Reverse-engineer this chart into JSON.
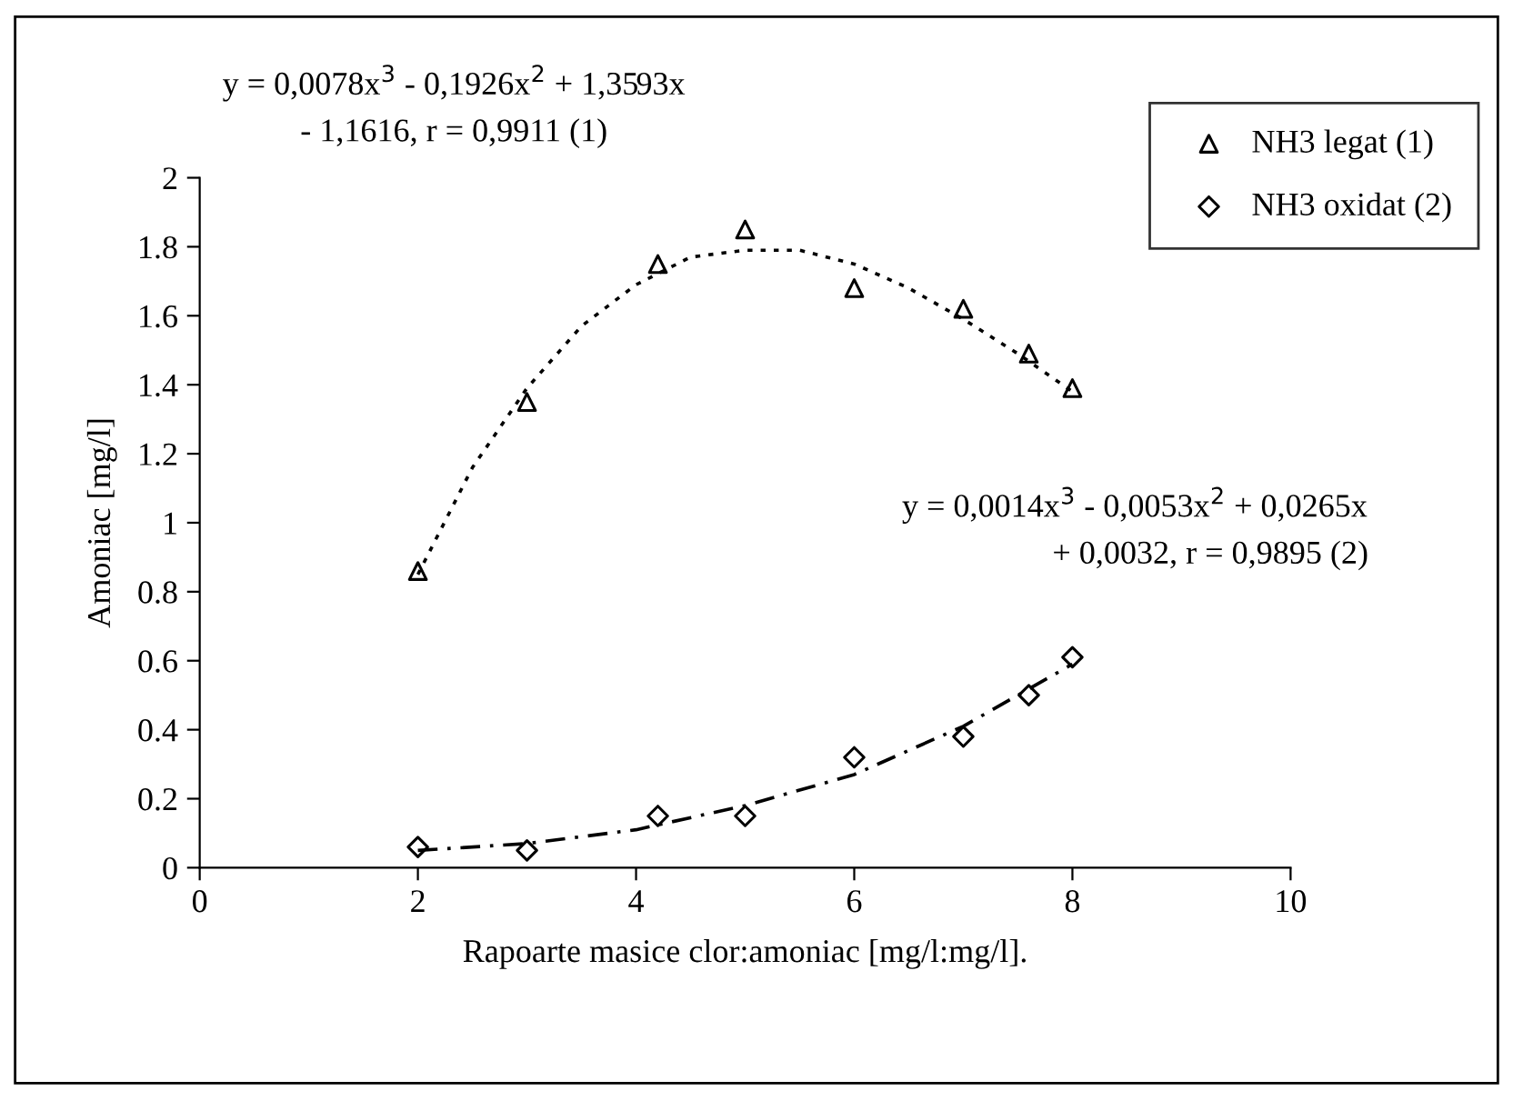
{
  "chart_data": {
    "type": "scatter",
    "xlabel": "Rapoarte masice clor:amoniac [mg/l:mg/l].",
    "ylabel": "Amoniac [mg/l]",
    "xlim": [
      0,
      10
    ],
    "xticks": [
      0,
      2,
      4,
      6,
      8,
      10
    ],
    "ylim": [
      0,
      2
    ],
    "yticks": [
      0,
      0.2,
      0.4,
      0.6,
      0.8,
      1,
      1.2,
      1.4,
      1.6,
      1.8,
      2
    ],
    "grid": false,
    "legend": "top right",
    "annotations": [
      "y = 0,0078x$^{3}$ - 0,1926x$^{2}$ + 1,3593x",
      "- 1,1616, r = 0,9911 (1)",
      "y = 0,0014x$^{3}$ - 0,0053x$^{2}$ + 0,0265x",
      "+ 0,0032, r = 0,9895 (2)"
    ],
    "series": [
      {
        "name": "NH3 legat (1)",
        "marker": "triangle",
        "color": "#000000",
        "x": [
          2,
          3,
          4.2,
          5,
          6,
          7,
          7.6,
          8
        ],
        "values": [
          0.86,
          1.35,
          1.75,
          1.85,
          1.68,
          1.62,
          1.49,
          1.39
        ]
      },
      {
        "name": "NH3 oxidat (2)",
        "marker": "diamond",
        "color": "#000000",
        "x": [
          2,
          3,
          4.2,
          5,
          6,
          7,
          7.6,
          8
        ],
        "values": [
          0.06,
          0.05,
          0.15,
          0.15,
          0.32,
          0.38,
          0.5,
          0.61
        ]
      },
      {
        "type": "line",
        "line_style": "dotted",
        "color": "#000000",
        "x": [
          2,
          2.5,
          3,
          3.5,
          4,
          4.5,
          5,
          5.5,
          6,
          6.5,
          7,
          7.5,
          8
        ],
        "values": [
          0.85,
          1.16,
          1.39,
          1.57,
          1.69,
          1.77,
          1.79,
          1.79,
          1.75,
          1.68,
          1.59,
          1.49,
          1.38
        ]
      },
      {
        "type": "line",
        "line_style": "dashed",
        "color": "#000000",
        "x": [
          2,
          3,
          4,
          5,
          6,
          7,
          8
        ],
        "values": [
          0.05,
          0.07,
          0.11,
          0.18,
          0.27,
          0.41,
          0.59
        ]
      }
    ]
  }
}
